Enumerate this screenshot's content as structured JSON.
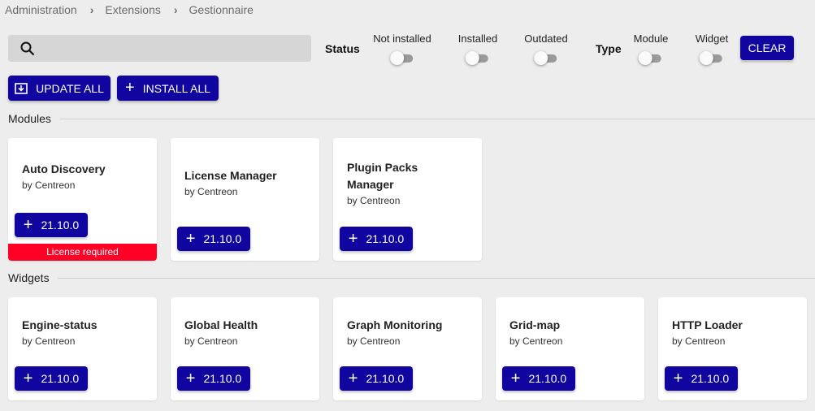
{
  "breadcrumb": [
    "Administration",
    "Extensions",
    "Gestionnaire"
  ],
  "search": {
    "value": "",
    "placeholder": ""
  },
  "filters": {
    "status_label": "Status",
    "status": [
      {
        "label": "Not installed",
        "on": false
      },
      {
        "label": "Installed",
        "on": false
      },
      {
        "label": "Outdated",
        "on": false
      }
    ],
    "type_label": "Type",
    "type": [
      {
        "label": "Module",
        "on": false
      },
      {
        "label": "Widget",
        "on": false
      }
    ],
    "clear": "CLEAR"
  },
  "actions": {
    "update_all": "UPDATE ALL",
    "install_all": "INSTALL ALL"
  },
  "colors": {
    "primary": "#10069f",
    "danger": "#ff0026",
    "background": "#ededed"
  },
  "modules": {
    "title": "Modules",
    "items": [
      {
        "name": "Auto Discovery",
        "author": "by Centreon",
        "version": "21.10.0",
        "badge": "License required"
      },
      {
        "name": "License Manager",
        "author": "by Centreon",
        "version": "21.10.0"
      },
      {
        "name": "Plugin Packs Manager",
        "author": "by Centreon",
        "version": "21.10.0"
      }
    ]
  },
  "widgets": {
    "title": "Widgets",
    "items": [
      {
        "name": "Engine-status",
        "author": "by Centreon",
        "version": "21.10.0"
      },
      {
        "name": "Global Health",
        "author": "by Centreon",
        "version": "21.10.0"
      },
      {
        "name": "Graph Monitoring",
        "author": "by Centreon",
        "version": "21.10.0"
      },
      {
        "name": "Grid-map",
        "author": "by Centreon",
        "version": "21.10.0"
      },
      {
        "name": "HTTP Loader",
        "author": "by Centreon",
        "version": "21.10.0"
      }
    ]
  }
}
